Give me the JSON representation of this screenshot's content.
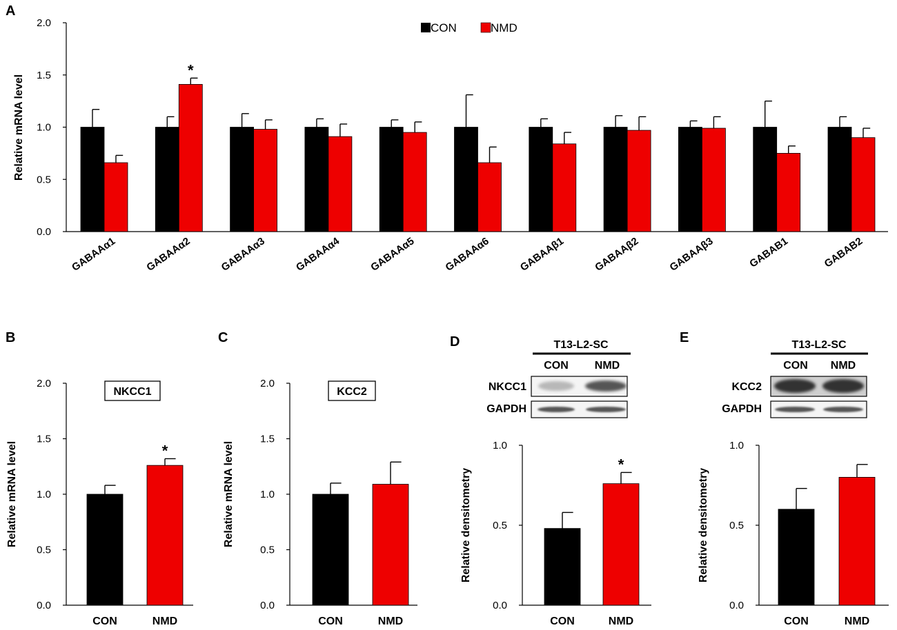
{
  "colors": {
    "con": "#000000",
    "nmd": "#ee0000",
    "axis": "#000000"
  },
  "chart_data": [
    {
      "id": "A",
      "type": "bar",
      "panel": "A",
      "title": "",
      "ylabel": "Relative mRNA level",
      "xlabel": "",
      "ylim": [
        0,
        2.0
      ],
      "yticks": [
        "0.0",
        "0.5",
        "1.0",
        "1.5",
        "2.0"
      ],
      "legend": {
        "position": "top-center",
        "entries": [
          "CON",
          "NMD"
        ]
      },
      "categories": [
        "GABAAα1",
        "GABAAα2",
        "GABAAα3",
        "GABAAα4",
        "GABAAα5",
        "GABAAα6",
        "GABAAβ1",
        "GABAAβ2",
        "GABAAβ3",
        "GABAB1",
        "GABAB2"
      ],
      "series": [
        {
          "name": "CON",
          "values": [
            1.0,
            1.0,
            1.0,
            1.0,
            1.0,
            1.0,
            1.0,
            1.0,
            1.0,
            1.0,
            1.0
          ],
          "errors": [
            0.17,
            0.1,
            0.13,
            0.08,
            0.07,
            0.31,
            0.08,
            0.11,
            0.06,
            0.25,
            0.1
          ]
        },
        {
          "name": "NMD",
          "values": [
            0.66,
            1.41,
            0.98,
            0.91,
            0.95,
            0.66,
            0.84,
            0.97,
            0.99,
            0.75,
            0.9
          ],
          "errors": [
            0.07,
            0.06,
            0.09,
            0.12,
            0.1,
            0.15,
            0.11,
            0.13,
            0.11,
            0.07,
            0.09
          ]
        }
      ],
      "annotations": [
        {
          "category": "GABAAα2",
          "series": "NMD",
          "text": "*"
        }
      ]
    },
    {
      "id": "B",
      "type": "bar",
      "panel": "B",
      "title": "NKCC1",
      "ylabel": "Relative mRNA level",
      "ylim": [
        0,
        2.0
      ],
      "yticks": [
        "0.0",
        "0.5",
        "1.0",
        "1.5",
        "2.0"
      ],
      "categories": [
        "CON",
        "NMD"
      ],
      "values": [
        1.0,
        1.26
      ],
      "errors": [
        0.08,
        0.06
      ],
      "annotations": [
        {
          "category": "NMD",
          "text": "*"
        }
      ]
    },
    {
      "id": "C",
      "type": "bar",
      "panel": "C",
      "title": "KCC2",
      "ylabel": "Relative mRNA level",
      "ylim": [
        0,
        2.0
      ],
      "yticks": [
        "0.0",
        "0.5",
        "1.0",
        "1.5",
        "2.0"
      ],
      "categories": [
        "CON",
        "NMD"
      ],
      "values": [
        1.0,
        1.09
      ],
      "errors": [
        0.1,
        0.2
      ],
      "annotations": []
    },
    {
      "id": "D",
      "type": "bar",
      "panel": "D",
      "title": "",
      "ylabel": "Relative densitometry",
      "ylim": [
        0,
        1.0
      ],
      "yticks": [
        "0.0",
        "0.5",
        "1.0"
      ],
      "categories": [
        "CON",
        "NMD"
      ],
      "values": [
        0.48,
        0.76
      ],
      "errors": [
        0.1,
        0.07
      ],
      "annotations": [
        {
          "category": "NMD",
          "text": "*"
        }
      ],
      "blot": {
        "header": "T13-L2-SC",
        "lanes": [
          "CON",
          "NMD"
        ],
        "rows": [
          "NKCC1",
          "GAPDH"
        ]
      }
    },
    {
      "id": "E",
      "type": "bar",
      "panel": "E",
      "title": "",
      "ylabel": "Relative densitometry",
      "ylim": [
        0,
        1.0
      ],
      "yticks": [
        "0.0",
        "0.5",
        "1.0"
      ],
      "categories": [
        "CON",
        "NMD"
      ],
      "values": [
        0.6,
        0.8
      ],
      "errors": [
        0.13,
        0.08
      ],
      "annotations": [],
      "blot": {
        "header": "T13-L2-SC",
        "lanes": [
          "CON",
          "NMD"
        ],
        "rows": [
          "KCC2",
          "GAPDH"
        ]
      }
    }
  ]
}
